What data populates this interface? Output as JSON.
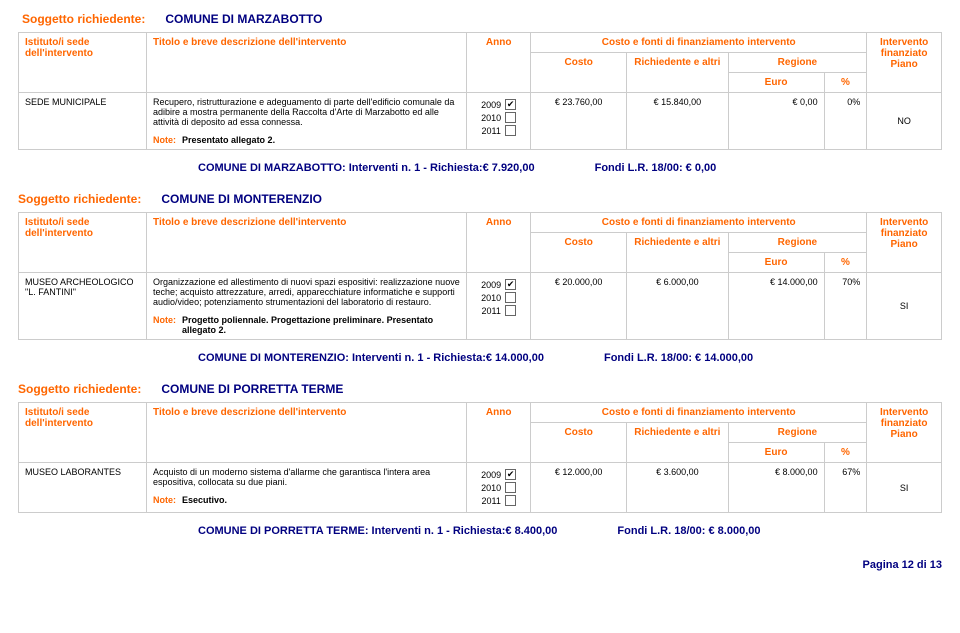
{
  "labels": {
    "soggetto": "Soggetto richiedente:",
    "istituto": "Istituto/i sede dell'intervento",
    "titolo": "Titolo e breve descrizione dell'intervento",
    "anno": "Anno",
    "costoFonti": "Costo e fonti di finanziamento intervento",
    "costo": "Costo",
    "richiedente": "Richiedente e altri",
    "regione": "Regione",
    "euro": "Euro",
    "percent": "%",
    "interventoFin": "Intervento finanziato Piano",
    "note": "Note:",
    "y2009": "2009",
    "y2010": "2010",
    "y2011": "2011"
  },
  "blocks": [
    {
      "soggetto": "COMUNE DI MARZABOTTO",
      "row": {
        "istituto": "SEDE MUNICIPALE",
        "desc": "Recupero, ristrutturazione e adeguamento di parte dell'edificio comunale da adibire a mostra permanente della Raccolta d'Arte di Marzabotto ed alle attività di deposito ad essa connessa.",
        "note": "Presentato allegato 2.",
        "year_checked": "2009",
        "costo": "€ 23.760,00",
        "rich": "€ 15.840,00",
        "reg_euro": "€ 0,00",
        "reg_pct": "0%",
        "fin": "NO"
      },
      "summary_left": "COMUNE DI MARZABOTTO: Interventi n. 1 - Richiesta:€ 7.920,00",
      "summary_right": "Fondi L.R. 18/00: € 0,00"
    },
    {
      "soggetto": "COMUNE DI MONTERENZIO",
      "row": {
        "istituto": "MUSEO ARCHEOLOGICO \"L. FANTINI\"",
        "desc": "Organizzazione ed allestimento di nuovi spazi espositivi: realizzazione nuove teche; acquisto attrezzature, arredi, apparecchiature informatiche e supporti audio/video; potenziamento strumentazioni del laboratorio di restauro.",
        "note": "Progetto poliennale. Progettazione preliminare. Presentato allegato 2.",
        "year_checked": "2009",
        "costo": "€ 20.000,00",
        "rich": "€ 6.000,00",
        "reg_euro": "€ 14.000,00",
        "reg_pct": "70%",
        "fin": "SI"
      },
      "summary_left": "COMUNE DI MONTERENZIO: Interventi n. 1 - Richiesta:€ 14.000,00",
      "summary_right": "Fondi L.R. 18/00: € 14.000,00"
    },
    {
      "soggetto": "COMUNE DI PORRETTA TERME",
      "row": {
        "istituto": "MUSEO LABORANTES",
        "desc": "Acquisto di un moderno sistema d'allarme che garantisca l'intera area espositiva, collocata su due piani.",
        "note": "Esecutivo.",
        "year_checked": "2009",
        "costo": "€ 12.000,00",
        "rich": "€ 3.600,00",
        "reg_euro": "€ 8.000,00",
        "reg_pct": "67%",
        "fin": "SI"
      },
      "summary_left": "COMUNE DI PORRETTA TERME: Interventi n. 1 - Richiesta:€ 8.400,00",
      "summary_right": "Fondi L.R. 18/00: € 8.000,00"
    }
  ],
  "pagefoot": "Pagina 12 di 13"
}
